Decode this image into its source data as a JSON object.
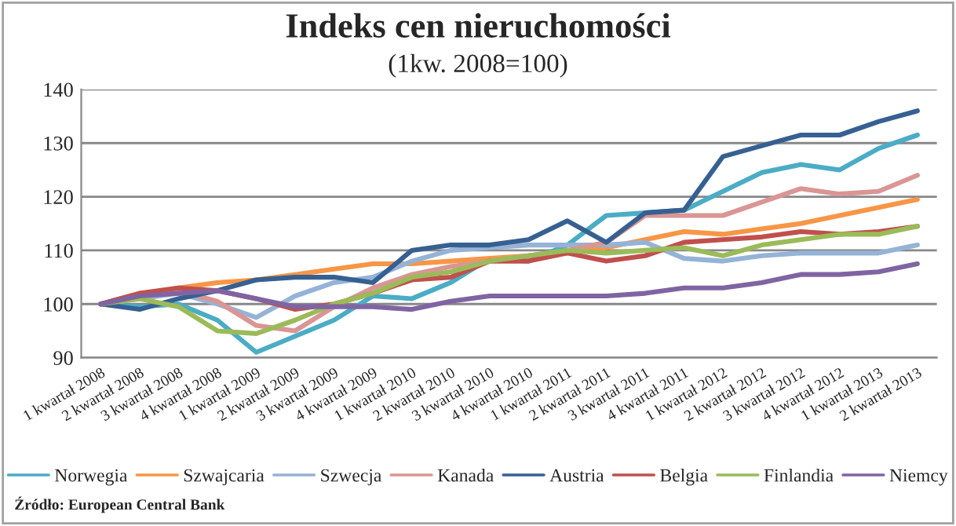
{
  "chart_data": {
    "type": "line",
    "title": "Indeks cen nieruchomości",
    "subtitle": "(1kw. 2008=100)",
    "categories": [
      "1 kwartał 2008",
      "2 kwartał 2008",
      "3 kwartał 2008",
      "4 kwartał 2008",
      "1 kwartał 2009",
      "2 kwartał 2009",
      "3 kwartał 2009",
      "4 kwartał 2009",
      "1 kwartał 2010",
      "2 kwartał 2010",
      "3 kwartał 2010",
      "4 kwartał 2010",
      "1 kwartał 2011",
      "2 kwartał 2011",
      "3 kwartał 2011",
      "4 kwartał 2011",
      "1 kwartał 2012",
      "2 kwartał 2012",
      "3 kwartał 2012",
      "4 kwartał 2012",
      "1 kwartał 2013",
      "2 kwartał 2013"
    ],
    "series": [
      {
        "name": "Norwegia",
        "color": "#4bacc6",
        "values": [
          100,
          99.5,
          100,
          97,
          91,
          94,
          97,
          101.5,
          101,
          104,
          108.5,
          108,
          111,
          116.5,
          117,
          117.5,
          121,
          124.5,
          126,
          125,
          129,
          131.5
        ]
      },
      {
        "name": "Szwajcaria",
        "color": "#f79646",
        "values": [
          100,
          101.5,
          103,
          104,
          104.5,
          105.5,
          106.5,
          107.5,
          107.5,
          108,
          108.5,
          109,
          109.5,
          110.5,
          112,
          113.5,
          113,
          114,
          115,
          116.5,
          118,
          119.5
        ]
      },
      {
        "name": "Szwecja",
        "color": "#95b3d7",
        "values": [
          100,
          101,
          102,
          100,
          97.5,
          101.5,
          104,
          105,
          108,
          110,
          110.5,
          111,
          111,
          111,
          111.5,
          108.5,
          108,
          109,
          109.5,
          109.5,
          109.5,
          111
        ]
      },
      {
        "name": "Kanada",
        "color": "#d99694",
        "values": [
          100,
          102,
          102.5,
          100.5,
          96,
          95,
          99.5,
          103,
          105.5,
          107,
          108,
          109,
          110,
          111.5,
          116.5,
          116.5,
          116.5,
          119,
          121.5,
          120.5,
          121,
          124
        ]
      },
      {
        "name": "Austria",
        "color": "#376092",
        "values": [
          100,
          99,
          101,
          102.5,
          104.5,
          105,
          105,
          104,
          110,
          111,
          111,
          112,
          115.5,
          111.5,
          117,
          117.5,
          127.5,
          129.5,
          131.5,
          131.5,
          134,
          136
        ]
      },
      {
        "name": "Belgia",
        "color": "#c0504d",
        "values": [
          100,
          102,
          103,
          102.5,
          101,
          99,
          100,
          102,
          104.5,
          105,
          108,
          108,
          109.5,
          108,
          109,
          111.5,
          112,
          112.5,
          113.5,
          113,
          113.5,
          114.5
        ]
      },
      {
        "name": "Finlandia",
        "color": "#9bbb59",
        "values": [
          100,
          101,
          99.5,
          95,
          94.5,
          97,
          100,
          102,
          105,
          106,
          108,
          109,
          110,
          109.5,
          110,
          110.5,
          109,
          111,
          112,
          113,
          113,
          114.5
        ]
      },
      {
        "name": "Niemcy",
        "color": "#8064a2",
        "values": [
          100,
          101.5,
          102,
          102.5,
          101,
          99.5,
          99.5,
          99.5,
          99,
          100.5,
          101.5,
          101.5,
          101.5,
          101.5,
          102,
          103,
          103,
          104,
          105.5,
          105.5,
          106,
          107.5
        ]
      }
    ],
    "ylim": [
      90,
      140
    ],
    "yticks": [
      90,
      100,
      110,
      120,
      130,
      140
    ],
    "grid": "y",
    "legend": "bottom",
    "marker": "none",
    "line_style": "solid",
    "annotations": [
      "Źródło: European Central Bank"
    ]
  }
}
